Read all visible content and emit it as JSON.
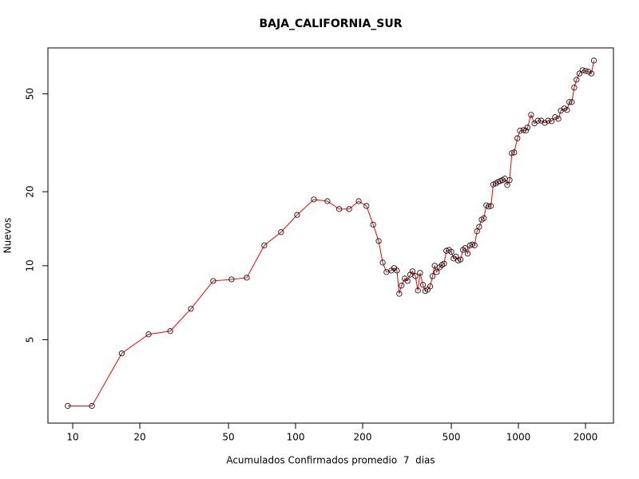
{
  "chart_data": {
    "type": "line",
    "title": "BAJA_CALIFORNIA_SUR",
    "x_label": "Acumulados Confirmados promedio  7  dias",
    "y_label": "Nuevos",
    "x_log": true,
    "y_log": true,
    "xlim": [
      7.74,
      2670
    ],
    "ylim": [
      2.29,
      76.9
    ],
    "xticks": [
      10,
      20,
      50,
      100,
      200,
      500,
      1000,
      2000
    ],
    "yticks": [
      5,
      10,
      20,
      50
    ],
    "line_color": "#ff0000",
    "marker_color": "#000000",
    "x": [
      9.5,
      12.2,
      16.6,
      21.9,
      27.4,
      33.9,
      42.7,
      51.6,
      60.4,
      72.4,
      86.1,
      101.6,
      120.8,
      139,
      157,
      174,
      192,
      208,
      223,
      236,
      246,
      256,
      269,
      277,
      285,
      292,
      299,
      309,
      318,
      327,
      335,
      345,
      354,
      362,
      373,
      382,
      391,
      402,
      412,
      421,
      430,
      443,
      454,
      464,
      475,
      488,
      500,
      512,
      524,
      537,
      550,
      564,
      577,
      592,
      606,
      621,
      636,
      652,
      667,
      684,
      700,
      718,
      735,
      753,
      771,
      790,
      809,
      829,
      849,
      870,
      891,
      913,
      935,
      958,
      990,
      1017,
      1054,
      1080,
      1099,
      1140,
      1180,
      1223,
      1267,
      1313,
      1360,
      1409,
      1460,
      1512,
      1550,
      1606,
      1652,
      1693,
      1737,
      1780,
      1824,
      1881,
      1940,
      2000,
      2062,
      2127,
      2181
    ],
    "values": [
      2.69,
      2.69,
      4.4,
      5.26,
      5.42,
      6.68,
      8.67,
      8.8,
      8.94,
      12.1,
      13.7,
      16.1,
      18.6,
      18.3,
      17.0,
      17.0,
      18.3,
      17.5,
      14.7,
      12.6,
      10.3,
      9.42,
      9.56,
      9.78,
      9.56,
      7.69,
      8.3,
      8.87,
      8.67,
      9.2,
      9.49,
      9.07,
      7.93,
      9.35,
      8.36,
      7.89,
      7.99,
      8.24,
      9.07,
      10,
      9.42,
      9.85,
      10.07,
      10.2,
      11.5,
      11.6,
      11.4,
      10.7,
      10.9,
      10.5,
      10.6,
      11.6,
      11.8,
      11.2,
      12.1,
      12.2,
      12.1,
      13.8,
      14.4,
      15.4,
      15.6,
      17.6,
      17.4,
      17.5,
      21.4,
      21.6,
      21.9,
      22.1,
      22.3,
      22.6,
      21.3,
      22.3,
      28.7,
      28.9,
      33.0,
      35.4,
      35.6,
      35.4,
      36.5,
      41.1,
      37.9,
      38.9,
      38.9,
      38.1,
      38.9,
      38.7,
      40.2,
      39.6,
      42.7,
      43.6,
      43.0,
      46.3,
      46.3,
      53.0,
      57.1,
      60.5,
      62.4,
      62.0,
      61.5,
      60.5,
      68.3
    ]
  }
}
